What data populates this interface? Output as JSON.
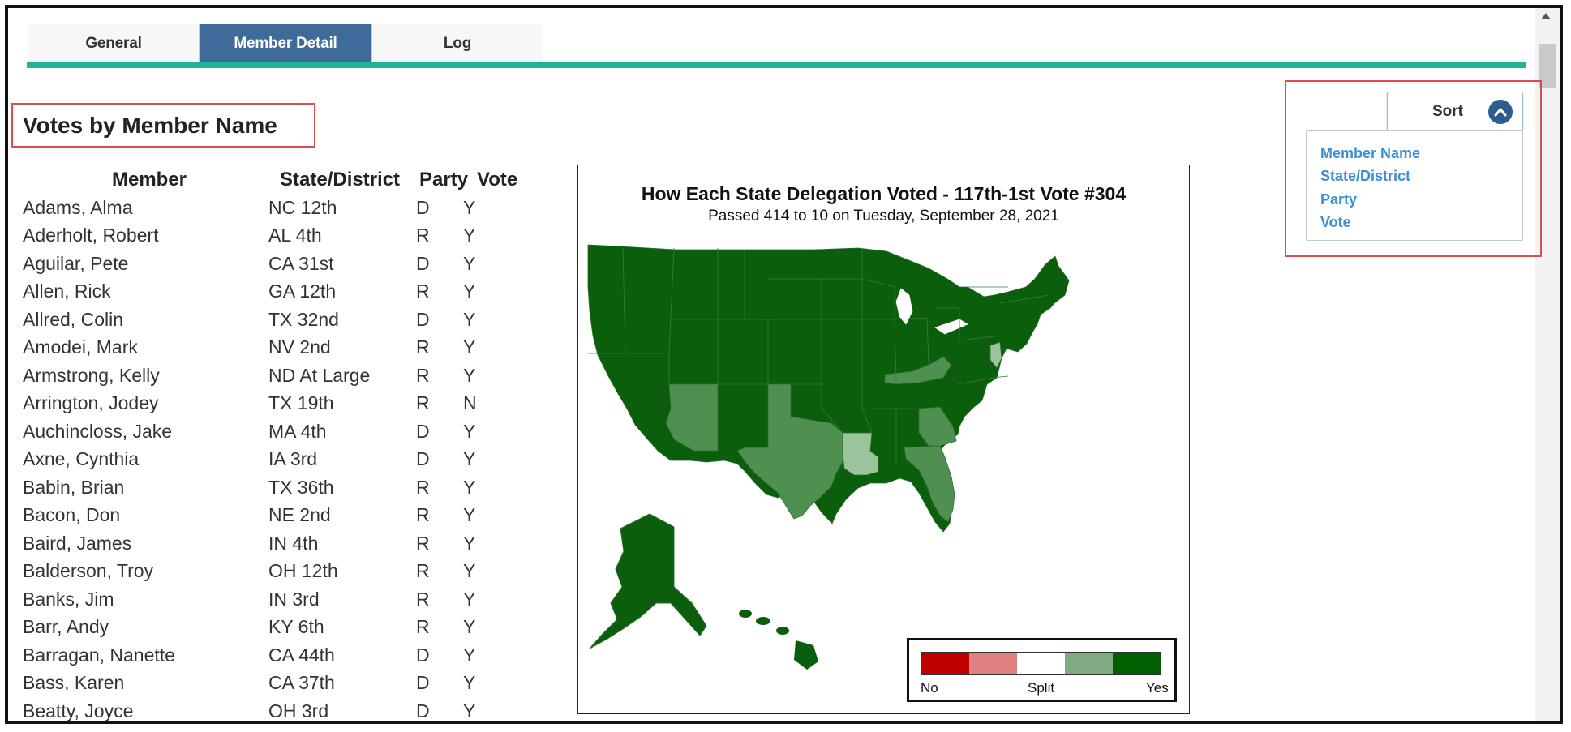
{
  "tabs": [
    {
      "label": "General",
      "active": false
    },
    {
      "label": "Member Detail",
      "active": true
    },
    {
      "label": "Log",
      "active": false
    }
  ],
  "heading": "Votes by Member Name",
  "table": {
    "headers": {
      "member": "Member",
      "state": "State/District",
      "party": "Party",
      "vote": "Vote"
    },
    "rows": [
      {
        "member": "Adams, Alma",
        "state": "NC 12th",
        "party": "D",
        "vote": "Y"
      },
      {
        "member": "Aderholt, Robert",
        "state": "AL 4th",
        "party": "R",
        "vote": "Y"
      },
      {
        "member": "Aguilar, Pete",
        "state": "CA 31st",
        "party": "D",
        "vote": "Y"
      },
      {
        "member": "Allen, Rick",
        "state": "GA 12th",
        "party": "R",
        "vote": "Y"
      },
      {
        "member": "Allred, Colin",
        "state": "TX 32nd",
        "party": "D",
        "vote": "Y"
      },
      {
        "member": "Amodei, Mark",
        "state": "NV 2nd",
        "party": "R",
        "vote": "Y"
      },
      {
        "member": "Armstrong, Kelly",
        "state": "ND At Large",
        "party": "R",
        "vote": "Y"
      },
      {
        "member": "Arrington, Jodey",
        "state": "TX 19th",
        "party": "R",
        "vote": "N"
      },
      {
        "member": "Auchincloss, Jake",
        "state": "MA 4th",
        "party": "D",
        "vote": "Y"
      },
      {
        "member": "Axne, Cynthia",
        "state": "IA 3rd",
        "party": "D",
        "vote": "Y"
      },
      {
        "member": "Babin, Brian",
        "state": "TX 36th",
        "party": "R",
        "vote": "Y"
      },
      {
        "member": "Bacon, Don",
        "state": "NE 2nd",
        "party": "R",
        "vote": "Y"
      },
      {
        "member": "Baird, James",
        "state": "IN 4th",
        "party": "R",
        "vote": "Y"
      },
      {
        "member": "Balderson, Troy",
        "state": "OH 12th",
        "party": "R",
        "vote": "Y"
      },
      {
        "member": "Banks, Jim",
        "state": "IN 3rd",
        "party": "R",
        "vote": "Y"
      },
      {
        "member": "Barr, Andy",
        "state": "KY 6th",
        "party": "R",
        "vote": "Y"
      },
      {
        "member": "Barragan, Nanette",
        "state": "CA 44th",
        "party": "D",
        "vote": "Y"
      },
      {
        "member": "Bass, Karen",
        "state": "CA 37th",
        "party": "D",
        "vote": "Y"
      },
      {
        "member": "Beatty, Joyce",
        "state": "OH 3rd",
        "party": "D",
        "vote": "Y"
      }
    ]
  },
  "map": {
    "title": "How Each State Delegation Voted - 117th-1st Vote #304",
    "subtitle": "Passed 414 to 10 on Tuesday, September 28, 2021",
    "legend": {
      "colors": [
        "#c00000",
        "#e08080",
        "#ffffff",
        "#80aa80",
        "#006000"
      ],
      "labels": {
        "no": "No",
        "split": "Split",
        "yes": "Yes"
      }
    },
    "colors": {
      "yes": "#0b5e0b",
      "mostly_yes": "#4f8f4f",
      "split_light": "#9cc49c"
    }
  },
  "sort": {
    "label": "Sort",
    "icon": "chevron-up-icon",
    "options": [
      "Member Name",
      "State/District",
      "Party",
      "Vote"
    ]
  },
  "colors": {
    "tab_active": "#3e6b9a",
    "tab_rule": "#1fb49a",
    "highlight": "#e04b4b",
    "link": "#3a8fd6"
  }
}
